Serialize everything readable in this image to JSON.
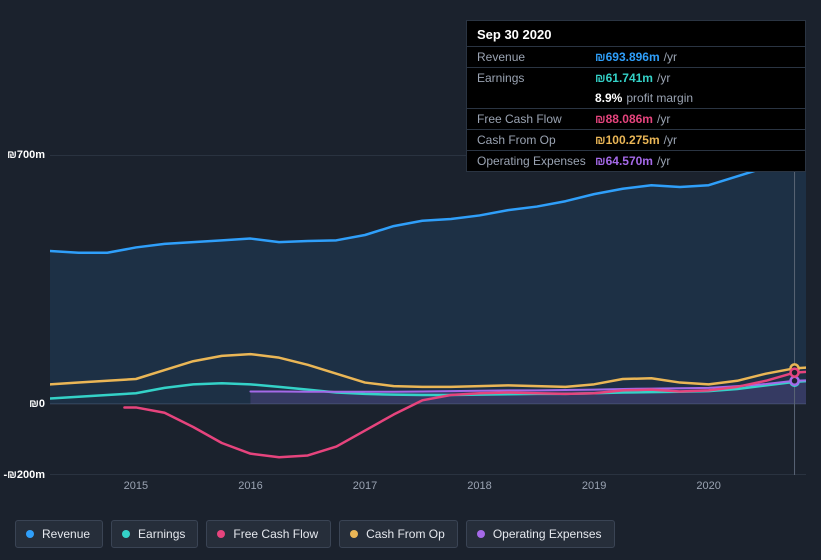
{
  "tooltip": {
    "date": "Sep 30 2020",
    "rows": [
      {
        "label": "Revenue",
        "value": "₪693.896m",
        "suffix": "/yr",
        "color": "#2f9ffa"
      },
      {
        "label": "Earnings",
        "value": "₪61.741m",
        "suffix": "/yr",
        "color": "#34d2c8"
      },
      {
        "label": "",
        "value": "8.9%",
        "suffix": "profit margin",
        "color": "#ffffff",
        "noborder": true
      },
      {
        "label": "Free Cash Flow",
        "value": "₪88.086m",
        "suffix": "/yr",
        "color": "#e6447d"
      },
      {
        "label": "Cash From Op",
        "value": "₪100.275m",
        "suffix": "/yr",
        "color": "#eab656"
      },
      {
        "label": "Operating Expenses",
        "value": "₪64.570m",
        "suffix": "/yr",
        "color": "#a569e8"
      }
    ]
  },
  "chart": {
    "type": "line-area",
    "currency_symbol": "₪",
    "background": "#1b222d",
    "grid_color": "#3a4454",
    "text_color": "#9aa3b2",
    "y_axis": {
      "min": -200,
      "max": 700,
      "ticks": [
        {
          "v": 700,
          "label": "₪700m"
        },
        {
          "v": 0,
          "label": "₪0"
        },
        {
          "v": -200,
          "label": "-₪200m"
        }
      ]
    },
    "x_axis": {
      "min": 2014.25,
      "max": 2020.85,
      "ticks": [
        2015,
        2016,
        2017,
        2018,
        2019,
        2020
      ]
    },
    "series": [
      {
        "name": "Revenue",
        "color": "#2f9ffa",
        "fill": true,
        "fill_opacity": 0.12,
        "width": 2.5,
        "points": [
          [
            2014.25,
            430
          ],
          [
            2014.5,
            425
          ],
          [
            2014.75,
            425
          ],
          [
            2015.0,
            440
          ],
          [
            2015.25,
            450
          ],
          [
            2015.5,
            455
          ],
          [
            2015.75,
            460
          ],
          [
            2016.0,
            465
          ],
          [
            2016.25,
            455
          ],
          [
            2016.5,
            458
          ],
          [
            2016.75,
            460
          ],
          [
            2017.0,
            475
          ],
          [
            2017.25,
            500
          ],
          [
            2017.5,
            515
          ],
          [
            2017.75,
            520
          ],
          [
            2018.0,
            530
          ],
          [
            2018.25,
            545
          ],
          [
            2018.5,
            555
          ],
          [
            2018.75,
            570
          ],
          [
            2019.0,
            590
          ],
          [
            2019.25,
            605
          ],
          [
            2019.5,
            615
          ],
          [
            2019.75,
            610
          ],
          [
            2020.0,
            615
          ],
          [
            2020.25,
            640
          ],
          [
            2020.5,
            665
          ],
          [
            2020.75,
            694
          ],
          [
            2020.85,
            700
          ]
        ]
      },
      {
        "name": "Cash From Op",
        "color": "#eab656",
        "fill": false,
        "width": 2.5,
        "points": [
          [
            2014.25,
            55
          ],
          [
            2014.5,
            60
          ],
          [
            2014.75,
            65
          ],
          [
            2015.0,
            70
          ],
          [
            2015.25,
            95
          ],
          [
            2015.5,
            120
          ],
          [
            2015.75,
            135
          ],
          [
            2016.0,
            140
          ],
          [
            2016.25,
            130
          ],
          [
            2016.5,
            110
          ],
          [
            2016.75,
            85
          ],
          [
            2017.0,
            60
          ],
          [
            2017.25,
            50
          ],
          [
            2017.5,
            48
          ],
          [
            2017.75,
            48
          ],
          [
            2018.0,
            50
          ],
          [
            2018.25,
            52
          ],
          [
            2018.5,
            50
          ],
          [
            2018.75,
            48
          ],
          [
            2019.0,
            55
          ],
          [
            2019.25,
            70
          ],
          [
            2019.5,
            72
          ],
          [
            2019.75,
            60
          ],
          [
            2020.0,
            55
          ],
          [
            2020.25,
            65
          ],
          [
            2020.5,
            85
          ],
          [
            2020.75,
            100
          ],
          [
            2020.85,
            102
          ]
        ]
      },
      {
        "name": "Earnings",
        "color": "#34d2c8",
        "fill": false,
        "width": 2.5,
        "points": [
          [
            2014.25,
            15
          ],
          [
            2014.5,
            20
          ],
          [
            2014.75,
            25
          ],
          [
            2015.0,
            30
          ],
          [
            2015.25,
            45
          ],
          [
            2015.5,
            55
          ],
          [
            2015.75,
            58
          ],
          [
            2016.0,
            55
          ],
          [
            2016.25,
            48
          ],
          [
            2016.5,
            40
          ],
          [
            2016.75,
            32
          ],
          [
            2017.0,
            28
          ],
          [
            2017.25,
            26
          ],
          [
            2017.5,
            25
          ],
          [
            2017.75,
            25
          ],
          [
            2018.0,
            26
          ],
          [
            2018.25,
            27
          ],
          [
            2018.5,
            28
          ],
          [
            2018.75,
            28
          ],
          [
            2019.0,
            30
          ],
          [
            2019.25,
            32
          ],
          [
            2019.5,
            33
          ],
          [
            2019.75,
            34
          ],
          [
            2020.0,
            36
          ],
          [
            2020.25,
            42
          ],
          [
            2020.5,
            52
          ],
          [
            2020.75,
            62
          ],
          [
            2020.85,
            64
          ]
        ]
      },
      {
        "name": "Operating Expenses",
        "color": "#a569e8",
        "fill": true,
        "fill_opacity": 0.18,
        "width": 2,
        "start": 2016.0,
        "points": [
          [
            2016.0,
            35
          ],
          [
            2016.25,
            35
          ],
          [
            2016.5,
            34
          ],
          [
            2016.75,
            34
          ],
          [
            2017.0,
            34
          ],
          [
            2017.25,
            34
          ],
          [
            2017.5,
            35
          ],
          [
            2017.75,
            36
          ],
          [
            2018.0,
            37
          ],
          [
            2018.25,
            38
          ],
          [
            2018.5,
            38
          ],
          [
            2018.75,
            39
          ],
          [
            2019.0,
            40
          ],
          [
            2019.25,
            42
          ],
          [
            2019.5,
            43
          ],
          [
            2019.75,
            44
          ],
          [
            2020.0,
            45
          ],
          [
            2020.25,
            50
          ],
          [
            2020.5,
            56
          ],
          [
            2020.75,
            65
          ],
          [
            2020.85,
            66
          ]
        ]
      },
      {
        "name": "Free Cash Flow",
        "color": "#e6447d",
        "fill": false,
        "width": 2.5,
        "start": 2014.9,
        "points": [
          [
            2014.9,
            -10
          ],
          [
            2015.0,
            -10
          ],
          [
            2015.25,
            -25
          ],
          [
            2015.5,
            -65
          ],
          [
            2015.75,
            -110
          ],
          [
            2016.0,
            -140
          ],
          [
            2016.25,
            -150
          ],
          [
            2016.5,
            -145
          ],
          [
            2016.75,
            -120
          ],
          [
            2017.0,
            -75
          ],
          [
            2017.25,
            -30
          ],
          [
            2017.5,
            10
          ],
          [
            2017.75,
            25
          ],
          [
            2018.0,
            30
          ],
          [
            2018.25,
            32
          ],
          [
            2018.5,
            30
          ],
          [
            2018.75,
            28
          ],
          [
            2019.0,
            30
          ],
          [
            2019.25,
            38
          ],
          [
            2019.5,
            40
          ],
          [
            2019.75,
            35
          ],
          [
            2020.0,
            38
          ],
          [
            2020.25,
            48
          ],
          [
            2020.5,
            65
          ],
          [
            2020.75,
            88
          ],
          [
            2020.85,
            90
          ]
        ]
      }
    ],
    "marker": {
      "x": 2020.75,
      "dots": true
    }
  },
  "legend": [
    {
      "label": "Revenue",
      "color": "#2f9ffa"
    },
    {
      "label": "Earnings",
      "color": "#34d2c8"
    },
    {
      "label": "Free Cash Flow",
      "color": "#e6447d"
    },
    {
      "label": "Cash From Op",
      "color": "#eab656"
    },
    {
      "label": "Operating Expenses",
      "color": "#a569e8"
    }
  ]
}
